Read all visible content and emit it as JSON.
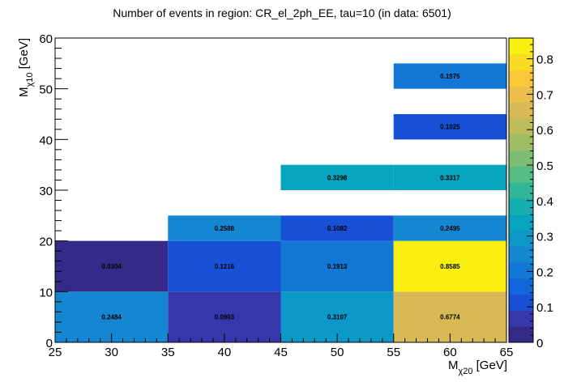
{
  "chart_data": {
    "type": "heatmap",
    "title": "Number of events in region: CR_el_2ph_EE, tau=10 (in data: 6501)",
    "xlabel": {
      "main": "M",
      "sub": "χ20",
      "unit": " [GeV]"
    },
    "ylabel": {
      "main": "M",
      "sub": "χ10",
      "unit": " [GeV]"
    },
    "xlim": [
      25,
      65
    ],
    "ylim": [
      0,
      60
    ],
    "x_ticks": [
      25,
      30,
      35,
      40,
      45,
      50,
      55,
      60,
      65
    ],
    "y_ticks": [
      0,
      10,
      20,
      30,
      40,
      50,
      60
    ],
    "zlim": [
      0,
      0.8585
    ],
    "z_ticks": [
      0,
      0.1,
      0.2,
      0.3,
      0.4,
      0.5,
      0.6,
      0.7,
      0.8
    ],
    "cells": [
      {
        "x0": 25,
        "x1": 35,
        "y0": 0,
        "y1": 10,
        "value": 0.2484,
        "label": "0.2484"
      },
      {
        "x0": 35,
        "x1": 45,
        "y0": 0,
        "y1": 10,
        "value": 0.0903,
        "label": "0.0903"
      },
      {
        "x0": 45,
        "x1": 55,
        "y0": 0,
        "y1": 10,
        "value": 0.3107,
        "label": "0.3107"
      },
      {
        "x0": 55,
        "x1": 65,
        "y0": 0,
        "y1": 10,
        "value": 0.6774,
        "label": "0.6774"
      },
      {
        "x0": 25,
        "x1": 35,
        "y0": 10,
        "y1": 20,
        "value": 0.0304,
        "label": "0.0304"
      },
      {
        "x0": 35,
        "x1": 45,
        "y0": 10,
        "y1": 20,
        "value": 0.1216,
        "label": "0.1216"
      },
      {
        "x0": 45,
        "x1": 55,
        "y0": 10,
        "y1": 20,
        "value": 0.1913,
        "label": "0.1913"
      },
      {
        "x0": 55,
        "x1": 65,
        "y0": 10,
        "y1": 20,
        "value": 0.8585,
        "label": "0.8585"
      },
      {
        "x0": 35,
        "x1": 45,
        "y0": 20,
        "y1": 25,
        "value": 0.2588,
        "label": "0.2588"
      },
      {
        "x0": 45,
        "x1": 55,
        "y0": 20,
        "y1": 25,
        "value": 0.1082,
        "label": "0.1082"
      },
      {
        "x0": 55,
        "x1": 65,
        "y0": 20,
        "y1": 25,
        "value": 0.2495,
        "label": "0.2495"
      },
      {
        "x0": 45,
        "x1": 55,
        "y0": 30,
        "y1": 35,
        "value": 0.3298,
        "label": "0.3298"
      },
      {
        "x0": 55,
        "x1": 65,
        "y0": 30,
        "y1": 35,
        "value": 0.3317,
        "label": "0.3317"
      },
      {
        "x0": 55,
        "x1": 65,
        "y0": 40,
        "y1": 45,
        "value": 0.1025,
        "label": "0.1025"
      },
      {
        "x0": 55,
        "x1": 65,
        "y0": 50,
        "y1": 55,
        "value": 0.1975,
        "label": "0.1975"
      }
    ],
    "palette": [
      "#352a87",
      "#3537aa",
      "#1750d5",
      "#1066db",
      "#1377d6",
      "#1587d2",
      "#0c98c9",
      "#06a4be",
      "#16aeae",
      "#31b698",
      "#55bc84",
      "#7cbe71",
      "#a1bd64",
      "#bebc5b",
      "#d7ba55",
      "#ecbf49",
      "#fbc83a",
      "#f8dc24",
      "#f9f00f"
    ]
  }
}
